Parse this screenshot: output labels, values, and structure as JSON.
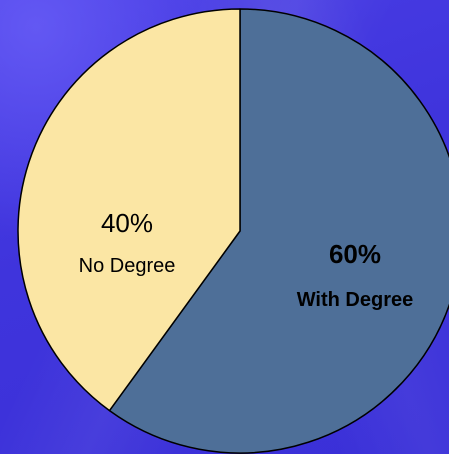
{
  "chart_data": {
    "type": "pie",
    "slices": [
      {
        "label": "With Degree",
        "value": 60,
        "value_label": "60%",
        "color": "#4e6f98",
        "label_bold": true
      },
      {
        "label": "No Degree",
        "value": 40,
        "value_label": "40%",
        "color": "#fbe6a4",
        "label_bold": false
      }
    ],
    "start": "12 o'clock",
    "direction": "clockwise",
    "outline_color": "#000000"
  },
  "background_color": "#4438dd"
}
